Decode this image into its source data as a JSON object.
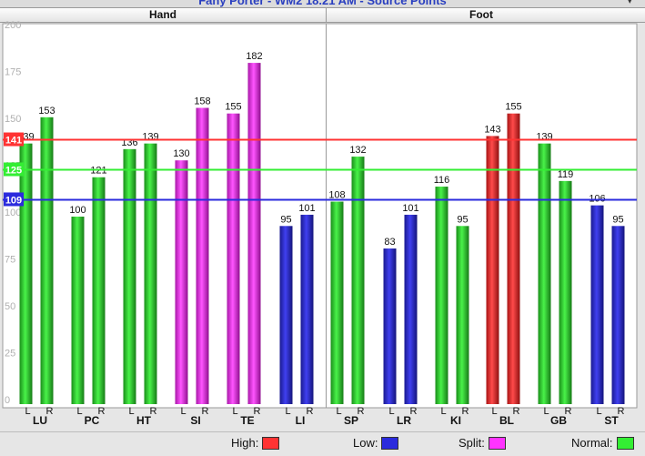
{
  "window": {
    "title": "Fany Porter - WM2 18.21 AM - Source Points",
    "menu_icon": "chevron-down-icon"
  },
  "panels": {
    "left": "Hand",
    "right": "Foot"
  },
  "colors": {
    "high": "#ff3333",
    "low": "#2b2bdd",
    "split": "#ff33ff",
    "normal": "#33ee33"
  },
  "legend": [
    {
      "label": "High:",
      "color": "#ff3333"
    },
    {
      "label": "Low:",
      "color": "#2b2bdd"
    },
    {
      "label": "Split:",
      "color": "#ff33ff"
    },
    {
      "label": "Normal:",
      "color": "#33ee33"
    }
  ],
  "chart_data": {
    "type": "bar",
    "ylim": [
      0,
      200
    ],
    "yticks": [
      0,
      25,
      50,
      75,
      100,
      125,
      150,
      175,
      200
    ],
    "grid": false,
    "legend_position": "bottom",
    "reference_lines": [
      {
        "name": "High",
        "value": 141,
        "label": "141",
        "color": "#ff3333"
      },
      {
        "name": "Normal",
        "value": 125,
        "label": "125",
        "color": "#33ee33"
      },
      {
        "name": "Low",
        "value": 109,
        "label": "109",
        "color": "#2b2bdd"
      }
    ],
    "side_labels": [
      "L",
      "R"
    ],
    "groups": [
      {
        "label": "LU",
        "panel": "Hand",
        "L": 139,
        "R": 153,
        "status": [
          "normal",
          "normal"
        ]
      },
      {
        "label": "PC",
        "panel": "Hand",
        "L": 100,
        "R": 121,
        "status": [
          "normal",
          "normal"
        ]
      },
      {
        "label": "HT",
        "panel": "Hand",
        "L": 136,
        "R": 139,
        "status": [
          "normal",
          "normal"
        ]
      },
      {
        "label": "SI",
        "panel": "Hand",
        "L": 130,
        "R": 158,
        "status": [
          "split",
          "split"
        ]
      },
      {
        "label": "TE",
        "panel": "Hand",
        "L": 155,
        "R": 182,
        "status": [
          "split",
          "split"
        ]
      },
      {
        "label": "LI",
        "panel": "Hand",
        "L": 95,
        "R": 101,
        "status": [
          "low",
          "low"
        ]
      },
      {
        "label": "SP",
        "panel": "Foot",
        "L": 108,
        "R": 132,
        "status": [
          "normal",
          "normal"
        ]
      },
      {
        "label": "LR",
        "panel": "Foot",
        "L": 83,
        "R": 101,
        "status": [
          "low",
          "low"
        ]
      },
      {
        "label": "KI",
        "panel": "Foot",
        "L": 116,
        "R": 95,
        "status": [
          "normal",
          "normal"
        ]
      },
      {
        "label": "BL",
        "panel": "Foot",
        "L": 143,
        "R": 155,
        "status": [
          "high",
          "high"
        ]
      },
      {
        "label": "GB",
        "panel": "Foot",
        "L": 139,
        "R": 119,
        "status": [
          "normal",
          "normal"
        ]
      },
      {
        "label": "ST",
        "panel": "Foot",
        "L": 106,
        "R": 95,
        "status": [
          "low",
          "low"
        ]
      }
    ]
  }
}
